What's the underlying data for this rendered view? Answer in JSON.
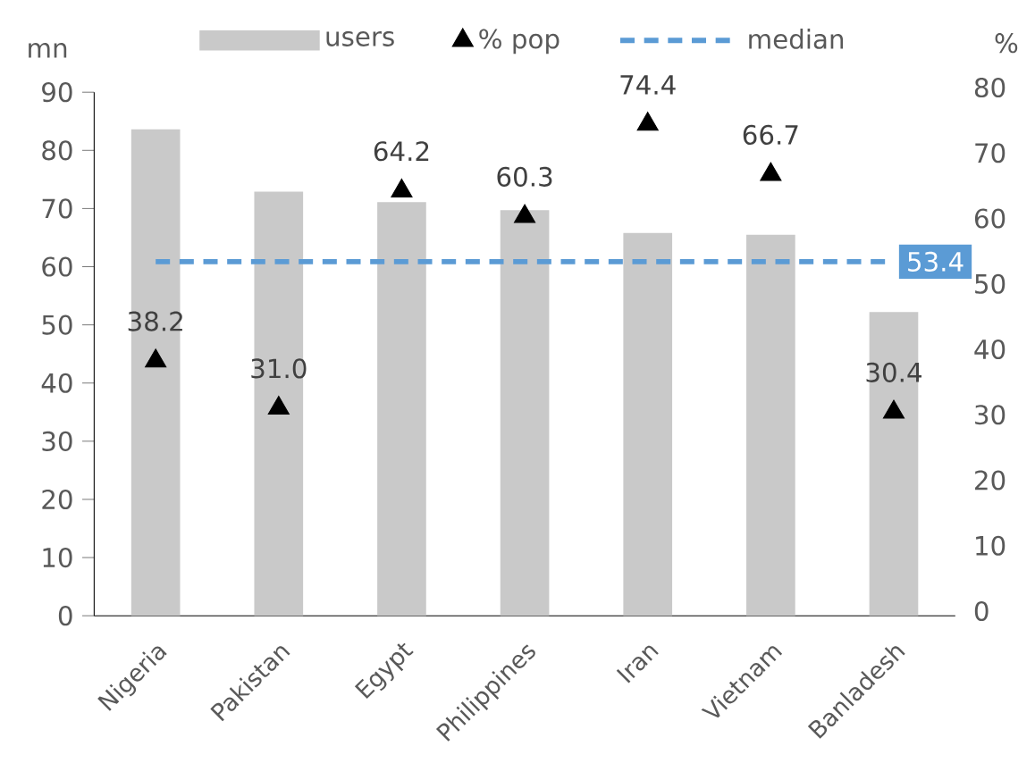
{
  "chart_data": {
    "type": "bar",
    "ylabel": "mn",
    "y2label": "%",
    "categories": [
      "Nigeria",
      "Pakistan",
      "Egypt",
      "Philippines",
      "Iran",
      "Vietnam",
      "Banladesh"
    ],
    "series": [
      {
        "name": "users",
        "color": "#c9c9c9",
        "values": [
          83.6,
          72.9,
          71.1,
          69.7,
          65.8,
          65.5,
          52.2
        ]
      },
      {
        "name": "% pop",
        "type": "scatter",
        "axis": "y2",
        "marker": "triangle",
        "color": "#000000",
        "values": [
          38.2,
          31.0,
          64.2,
          60.3,
          74.4,
          66.7,
          30.4
        ],
        "value_labels": [
          "38.2",
          "31.0",
          "64.2",
          "60.3",
          "74.4",
          "66.7",
          "30.4"
        ]
      },
      {
        "name": "median",
        "type": "line",
        "axis": "y2",
        "marker": "none",
        "line_style": "dashed",
        "color": "#5b9bd5",
        "values": [
          53.4,
          53.4,
          53.4,
          53.4,
          53.4,
          53.4,
          53.4
        ],
        "value_labels": [
          null,
          null,
          null,
          null,
          null,
          null,
          "53.4"
        ]
      }
    ],
    "ylim": [
      0,
      90
    ],
    "yticks": [
      0,
      10,
      20,
      30,
      40,
      50,
      60,
      70,
      80,
      90
    ],
    "y2lim": [
      0,
      80
    ],
    "y2ticks": [
      0,
      10,
      20,
      30,
      40,
      50,
      60,
      70,
      80
    ],
    "legend": "top"
  }
}
